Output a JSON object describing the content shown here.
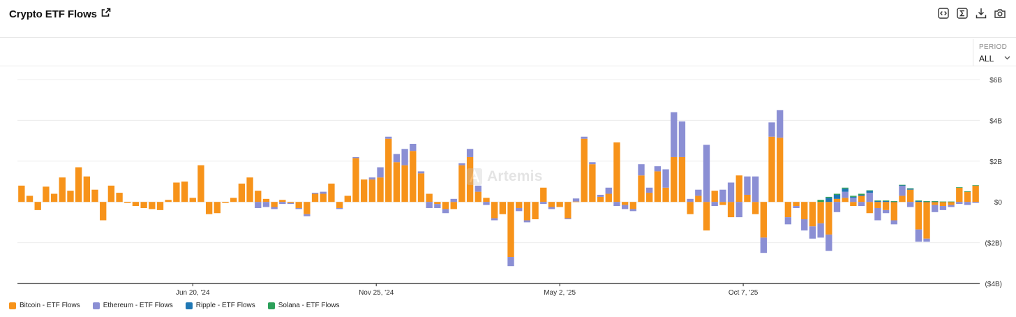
{
  "header": {
    "title": "Crypto ETF Flows",
    "icons": [
      "external-link-icon",
      "embed-code-icon",
      "sigma-icon",
      "download-icon",
      "camera-icon"
    ]
  },
  "controls": {
    "period_label": "PERIOD",
    "period_value": "ALL"
  },
  "watermark": {
    "text": "Artemis"
  },
  "chart_data": {
    "type": "bar",
    "stacked": true,
    "title": "Crypto ETF Flows",
    "xlabel": "",
    "ylabel": "",
    "ylim": [
      -4,
      6
    ],
    "y_unit": "billion USD",
    "y_ticks": [
      {
        "value": 6,
        "label": "$6B"
      },
      {
        "value": 4,
        "label": "$4B"
      },
      {
        "value": 2,
        "label": "$2B"
      },
      {
        "value": 0,
        "label": "$0"
      },
      {
        "value": -2,
        "label": "($2B)"
      },
      {
        "value": -4,
        "label": "($4B)"
      }
    ],
    "x_ticks": [
      {
        "index": 21.5,
        "label": "Jun 20, '24"
      },
      {
        "index": 44,
        "label": "Nov 25, '24"
      },
      {
        "index": 66.5,
        "label": "May 2, '25"
      },
      {
        "index": 89,
        "label": "Oct 7, '25"
      }
    ],
    "grid": true,
    "legend_position": "bottom-left",
    "series": [
      {
        "name": "Bitcoin - ETF Flows",
        "color": "#f7931a",
        "values": [
          0.8,
          0.3,
          -0.4,
          0.75,
          0.4,
          1.2,
          0.55,
          1.7,
          1.25,
          0.6,
          -0.9,
          0.8,
          0.45,
          -0.05,
          -0.2,
          -0.3,
          -0.35,
          -0.4,
          0.1,
          0.95,
          1.0,
          0.2,
          1.8,
          -0.6,
          -0.55,
          -0.05,
          0.2,
          0.9,
          1.2,
          0.55,
          0.15,
          -0.25,
          0.1,
          -0.05,
          -0.3,
          -0.6,
          0.4,
          0.4,
          0.9,
          -0.3,
          0.3,
          2.15,
          1.1,
          1.1,
          1.2,
          3.1,
          1.95,
          1.8,
          2.5,
          1.4,
          0.4,
          -0.1,
          -0.35,
          -0.35,
          1.8,
          2.2,
          0.5,
          0.2,
          -0.8,
          -0.6,
          -2.7,
          -0.3,
          -0.9,
          -0.85,
          0.7,
          -0.25,
          -0.25,
          -0.8,
          0.02,
          3.1,
          1.85,
          0.25,
          0.4,
          2.92,
          -0.15,
          -0.35,
          1.3,
          0.45,
          1.5,
          0.7,
          2.2,
          2.2,
          -0.6,
          0.3,
          -1.4,
          0.55,
          -0.15,
          -0.75,
          1.3,
          0.35,
          -0.6,
          -1.75,
          3.2,
          3.15,
          -0.75,
          -0.2,
          -0.85,
          -1.2,
          -1.05,
          -1.6,
          0.15,
          0.2,
          -0.2,
          0.3,
          -0.55,
          -0.3,
          -0.4,
          -0.9,
          0.3,
          0.6,
          -1.35,
          -1.8,
          -0.15,
          -0.2,
          -0.15,
          0.7,
          0.5,
          0.8
        ]
      },
      {
        "name": "Ethereum - ETF Flows",
        "color": "#8b8fd4",
        "values": [
          0,
          0,
          0,
          0,
          0,
          0,
          0,
          0,
          0,
          0,
          0,
          0,
          0,
          0,
          0,
          0,
          0,
          0,
          0,
          0,
          0,
          0,
          0,
          0,
          0,
          0,
          0,
          0,
          0,
          -0.3,
          -0.25,
          -0.1,
          -0.1,
          -0.05,
          -0.05,
          -0.1,
          0.05,
          0.1,
          0,
          -0.05,
          0,
          0.05,
          0,
          0.1,
          0.5,
          0.1,
          0.4,
          0.8,
          0.35,
          0.1,
          -0.3,
          -0.2,
          -0.2,
          0.15,
          0.1,
          0.4,
          0.3,
          -0.15,
          -0.1,
          0,
          -0.45,
          -0.15,
          -0.1,
          0,
          -0.1,
          -0.1,
          0,
          -0.05,
          0.15,
          0.1,
          0.1,
          0.1,
          0.3,
          -0.2,
          -0.2,
          -0.1,
          0.55,
          0.25,
          0.25,
          0.9,
          2.2,
          1.75,
          0.15,
          0.3,
          2.8,
          -0.2,
          0.6,
          0.95,
          -0.75,
          0.9,
          1.25,
          -0.75,
          0.7,
          1.35,
          -0.35,
          -0.1,
          -0.55,
          -0.6,
          -0.7,
          -0.8,
          -0.5,
          0.3,
          0.2,
          -0.2,
          0.45,
          -0.6,
          -0.15,
          -0.2,
          0.5,
          -0.25,
          -0.6,
          -0.15,
          -0.35,
          -0.2,
          -0.1,
          -0.1,
          -0.15,
          -0.05
        ]
      },
      {
        "name": "Ripple - ETF Flows",
        "color": "#1f77b4",
        "values": [
          0,
          0,
          0,
          0,
          0,
          0,
          0,
          0,
          0,
          0,
          0,
          0,
          0,
          0,
          0,
          0,
          0,
          0,
          0,
          0,
          0,
          0,
          0,
          0,
          0,
          0,
          0,
          0,
          0,
          0,
          0,
          0,
          0,
          0,
          0,
          0,
          0,
          0,
          0,
          0,
          0,
          0,
          0,
          0,
          0,
          0,
          0,
          0,
          0,
          0,
          0,
          0,
          0,
          0,
          0,
          0,
          0,
          0,
          0,
          0,
          0,
          0,
          0,
          0,
          0,
          0,
          0,
          0,
          0,
          0,
          0,
          0,
          0,
          0,
          0,
          0,
          0,
          0,
          0,
          0,
          0,
          0,
          0,
          0,
          0,
          0,
          0,
          0,
          0,
          0,
          0,
          0,
          0,
          0,
          0,
          0,
          0,
          0,
          0,
          0.2,
          0.2,
          0.15,
          0.05,
          0.05,
          0.1,
          0.05,
          0.05,
          0.02,
          0.02,
          0.05,
          0.05,
          0.02,
          0.02,
          0,
          0,
          0,
          0,
          0
        ]
      },
      {
        "name": "Solana - ETF Flows",
        "color": "#2ca05a",
        "values": [
          0,
          0,
          0,
          0,
          0,
          0,
          0,
          0,
          0,
          0,
          0,
          0,
          0,
          0,
          0,
          0,
          0,
          0,
          0,
          0,
          0,
          0,
          0,
          0,
          0,
          0,
          0,
          0,
          0,
          0,
          0,
          0,
          0,
          0,
          0,
          0,
          0,
          0,
          0,
          0,
          0,
          0,
          0,
          0,
          0,
          0,
          0,
          0,
          0,
          0,
          0,
          0,
          0,
          0,
          0,
          0,
          0,
          0,
          0,
          0,
          0,
          0,
          0,
          0,
          0,
          0,
          0,
          0,
          0,
          0,
          0,
          0,
          0,
          0,
          0,
          0,
          0,
          0,
          0,
          0,
          0,
          0,
          0,
          0,
          0,
          0,
          0,
          0,
          0,
          0,
          0,
          0,
          0,
          0,
          0,
          0,
          0,
          0,
          0.1,
          0.05,
          0.05,
          0.05,
          0.05,
          0.05,
          0.02,
          0.02,
          0.02,
          0.02,
          0.02,
          0.02,
          0.02,
          0.02,
          0.02,
          0.02,
          0.02,
          0.02,
          0.02,
          0.02
        ]
      }
    ]
  }
}
